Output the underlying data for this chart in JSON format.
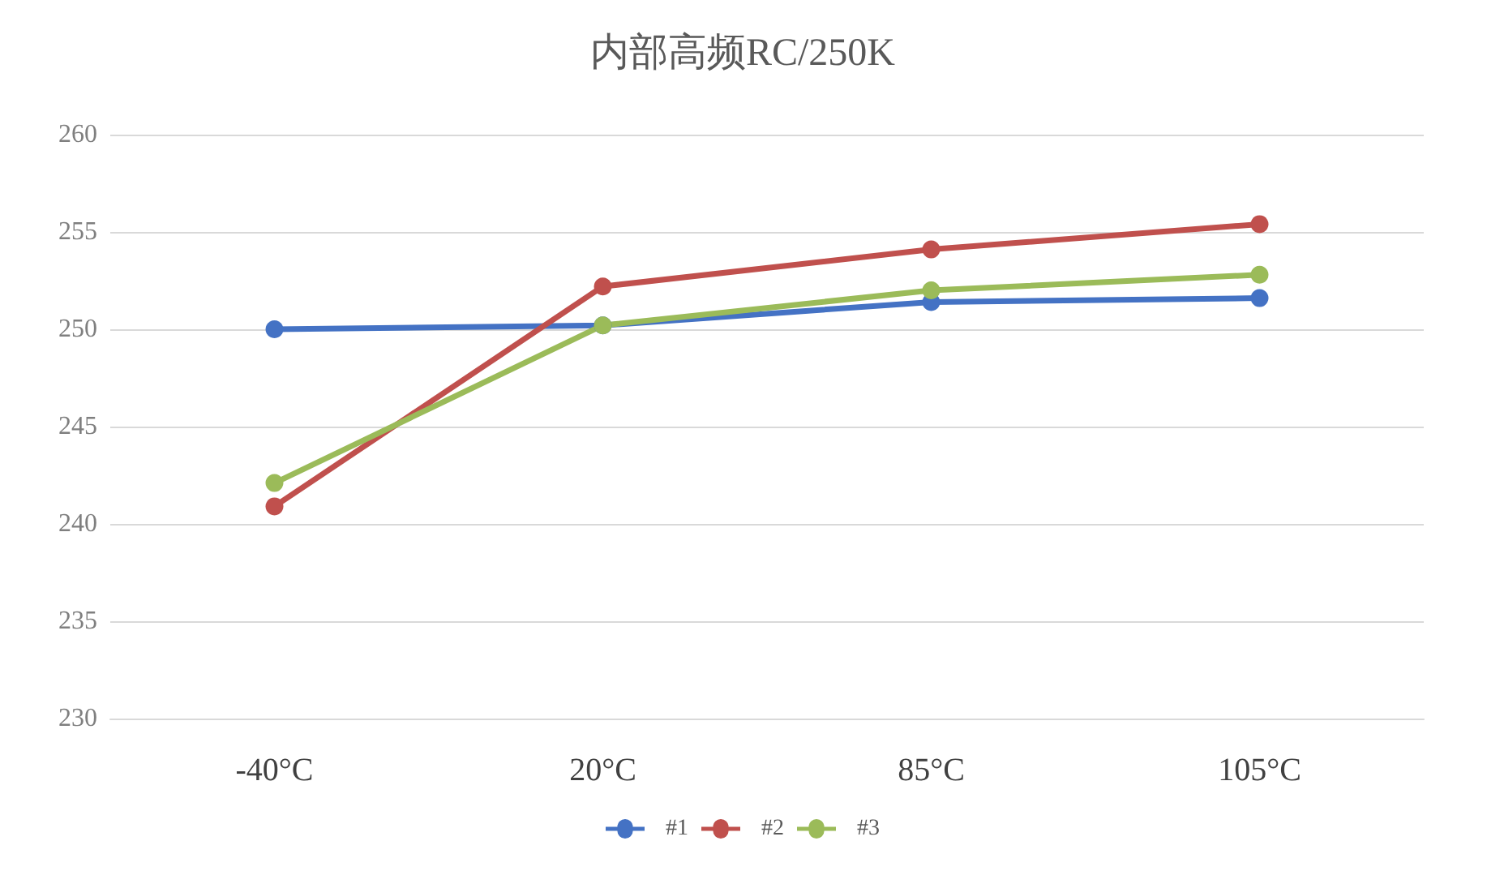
{
  "chart_data": {
    "type": "line",
    "title": "内部高频RC/250K",
    "categories": [
      "-40°C",
      "20°C",
      "85°C",
      "105°C"
    ],
    "series": [
      {
        "name": "#1",
        "color": "#4472c4",
        "values": [
          250.0,
          250.2,
          251.4,
          251.6
        ]
      },
      {
        "name": "#2",
        "color": "#c0504d",
        "values": [
          240.9,
          252.2,
          254.1,
          255.4
        ]
      },
      {
        "name": "#3",
        "color": "#9bbb59",
        "values": [
          242.1,
          250.2,
          252.0,
          252.8
        ]
      }
    ],
    "ylim": [
      230,
      260
    ],
    "yticks": [
      230,
      235,
      240,
      245,
      250,
      255,
      260
    ],
    "grid": "y",
    "legend": "bottom",
    "marker": "circle",
    "line_style": "solid"
  }
}
